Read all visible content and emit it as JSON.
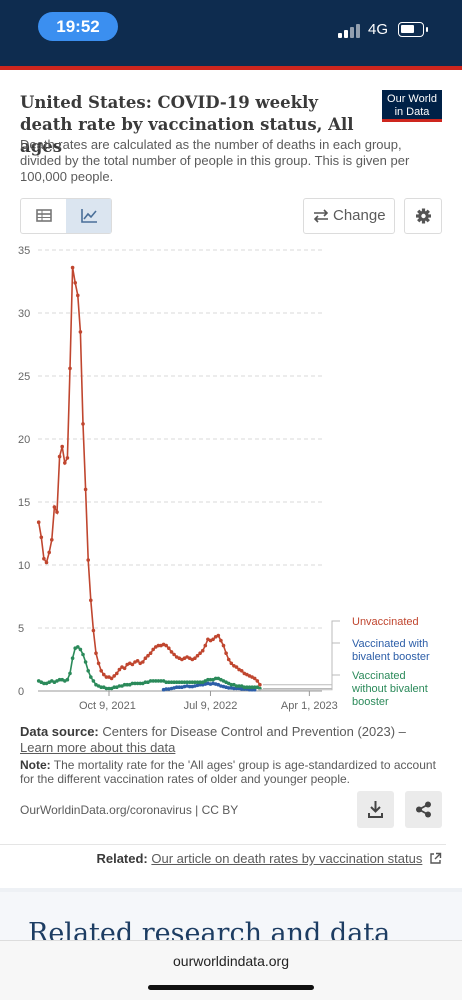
{
  "status_bar": {
    "time": "19:52",
    "network": "4G"
  },
  "header": {
    "title": "United States: COVID-19 weekly death rate by vaccination status, All ages",
    "subtitle": "Death rates are calculated as the number of deaths in each group, divided by the total number of people in this group. This is given per 100,000 people.",
    "logo_line1": "Our World",
    "logo_line2": "in Data"
  },
  "toolbar": {
    "change_label": "Change",
    "icons": [
      "table-icon",
      "line-chart-icon",
      "swap-arrows-icon",
      "gear-icon"
    ]
  },
  "colors": {
    "unvaccinated": "#c0462f",
    "bivalent": "#2c5ea8",
    "without_bivalent": "#2b8a5a",
    "brand": "#002147",
    "accent_red": "#ce261e"
  },
  "chart_data": {
    "type": "line",
    "ylim": [
      0,
      35
    ],
    "yticks": [
      0,
      5,
      10,
      15,
      20,
      25,
      30,
      35
    ],
    "xlim": [
      "2021-04-01",
      "2023-05-05"
    ],
    "xticks": [
      {
        "date": "2021-10-09",
        "label": "Oct 9, 2021"
      },
      {
        "date": "2022-07-09",
        "label": "Jul 9, 2022"
      },
      {
        "date": "2023-04-01",
        "label": "Apr 1, 2023"
      }
    ],
    "grid": "horizontal-dashed",
    "legend": "right-end-labels",
    "series": [
      {
        "name": "Unvaccinated",
        "color": "#c0462f",
        "points": [
          [
            "2021-04-03",
            13.4
          ],
          [
            "2021-04-10",
            12.2
          ],
          [
            "2021-04-17",
            10.5
          ],
          [
            "2021-04-24",
            10.2
          ],
          [
            "2021-05-01",
            11.0
          ],
          [
            "2021-05-08",
            12.0
          ],
          [
            "2021-05-15",
            14.6
          ],
          [
            "2021-05-22",
            14.2
          ],
          [
            "2021-05-29",
            18.6
          ],
          [
            "2021-06-05",
            19.4
          ],
          [
            "2021-06-12",
            18.1
          ],
          [
            "2021-06-19",
            18.5
          ],
          [
            "2021-06-26",
            25.6
          ],
          [
            "2021-07-03",
            33.6
          ],
          [
            "2021-07-10",
            32.4
          ],
          [
            "2021-07-17",
            31.4
          ],
          [
            "2021-07-24",
            28.5
          ],
          [
            "2021-07-31",
            21.2
          ],
          [
            "2021-08-07",
            16.0
          ],
          [
            "2021-08-14",
            10.4
          ],
          [
            "2021-08-21",
            7.2
          ],
          [
            "2021-08-28",
            4.8
          ],
          [
            "2021-09-04",
            3.0
          ],
          [
            "2021-09-11",
            2.2
          ],
          [
            "2021-09-18",
            1.6
          ],
          [
            "2021-09-25",
            1.3
          ],
          [
            "2021-10-02",
            1.1
          ],
          [
            "2021-10-09",
            1.1
          ],
          [
            "2021-10-16",
            1.0
          ],
          [
            "2021-10-23",
            1.2
          ],
          [
            "2021-10-30",
            1.4
          ],
          [
            "2021-11-06",
            1.7
          ],
          [
            "2021-11-13",
            1.9
          ],
          [
            "2021-11-20",
            1.8
          ],
          [
            "2021-11-27",
            2.1
          ],
          [
            "2021-12-04",
            2.2
          ],
          [
            "2021-12-11",
            2.1
          ],
          [
            "2021-12-18",
            2.3
          ],
          [
            "2021-12-25",
            2.4
          ],
          [
            "2022-01-01",
            2.2
          ],
          [
            "2022-01-08",
            2.3
          ],
          [
            "2022-01-15",
            2.6
          ],
          [
            "2022-01-22",
            2.8
          ],
          [
            "2022-01-29",
            3.0
          ],
          [
            "2022-02-05",
            3.3
          ],
          [
            "2022-02-12",
            3.5
          ],
          [
            "2022-02-19",
            3.6
          ],
          [
            "2022-02-26",
            3.6
          ],
          [
            "2022-03-05",
            3.7
          ],
          [
            "2022-03-12",
            3.6
          ],
          [
            "2022-03-19",
            3.4
          ],
          [
            "2022-03-26",
            3.1
          ],
          [
            "2022-04-02",
            2.9
          ],
          [
            "2022-04-09",
            2.7
          ],
          [
            "2022-04-16",
            2.6
          ],
          [
            "2022-04-23",
            2.5
          ],
          [
            "2022-04-30",
            2.6
          ],
          [
            "2022-05-07",
            2.7
          ],
          [
            "2022-05-14",
            2.6
          ],
          [
            "2022-05-21",
            2.5
          ],
          [
            "2022-05-28",
            2.6
          ],
          [
            "2022-06-04",
            2.8
          ],
          [
            "2022-06-11",
            3.0
          ],
          [
            "2022-06-18",
            3.2
          ],
          [
            "2022-06-25",
            3.6
          ],
          [
            "2022-07-02",
            4.1
          ],
          [
            "2022-07-09",
            4.0
          ],
          [
            "2022-07-16",
            4.1
          ],
          [
            "2022-07-23",
            4.3
          ],
          [
            "2022-07-30",
            4.4
          ],
          [
            "2022-08-06",
            4.0
          ],
          [
            "2022-08-13",
            3.6
          ],
          [
            "2022-08-20",
            3.0
          ],
          [
            "2022-08-27",
            2.5
          ],
          [
            "2022-09-03",
            2.2
          ],
          [
            "2022-09-10",
            2.0
          ],
          [
            "2022-09-17",
            1.9
          ],
          [
            "2022-09-24",
            1.7
          ],
          [
            "2022-10-01",
            1.6
          ],
          [
            "2022-10-08",
            1.4
          ],
          [
            "2022-10-15",
            1.3
          ],
          [
            "2022-10-22",
            1.2
          ],
          [
            "2022-10-29",
            1.1
          ],
          [
            "2022-11-05",
            1.0
          ],
          [
            "2022-11-12",
            0.8
          ],
          [
            "2022-11-19",
            0.5
          ]
        ]
      },
      {
        "name": "Vaccinated with bivalent booster",
        "color": "#2c5ea8",
        "points": [
          [
            "2022-03-05",
            0.1
          ],
          [
            "2022-03-12",
            0.15
          ],
          [
            "2022-03-19",
            0.15
          ],
          [
            "2022-03-26",
            0.2
          ],
          [
            "2022-04-02",
            0.25
          ],
          [
            "2022-04-09",
            0.3
          ],
          [
            "2022-04-16",
            0.3
          ],
          [
            "2022-04-23",
            0.3
          ],
          [
            "2022-04-30",
            0.35
          ],
          [
            "2022-05-07",
            0.4
          ],
          [
            "2022-05-14",
            0.35
          ],
          [
            "2022-05-21",
            0.35
          ],
          [
            "2022-05-28",
            0.4
          ],
          [
            "2022-06-04",
            0.45
          ],
          [
            "2022-06-11",
            0.5
          ],
          [
            "2022-06-18",
            0.5
          ],
          [
            "2022-06-25",
            0.55
          ],
          [
            "2022-07-02",
            0.6
          ],
          [
            "2022-07-09",
            0.55
          ],
          [
            "2022-07-16",
            0.6
          ],
          [
            "2022-07-23",
            0.55
          ],
          [
            "2022-07-30",
            0.5
          ],
          [
            "2022-08-06",
            0.4
          ],
          [
            "2022-08-13",
            0.35
          ],
          [
            "2022-08-20",
            0.3
          ],
          [
            "2022-08-27",
            0.25
          ],
          [
            "2022-09-03",
            0.25
          ],
          [
            "2022-09-10",
            0.2
          ],
          [
            "2022-09-17",
            0.2
          ],
          [
            "2022-09-24",
            0.2
          ],
          [
            "2022-10-01",
            0.15
          ],
          [
            "2022-10-08",
            0.15
          ],
          [
            "2022-10-15",
            0.15
          ],
          [
            "2022-10-22",
            0.1
          ],
          [
            "2022-10-29",
            0.1
          ],
          [
            "2022-11-05",
            0.1
          ]
        ]
      },
      {
        "name": "Vaccinated without bivalent booster",
        "color": "#2b8a5a",
        "points": [
          [
            "2021-04-03",
            0.8
          ],
          [
            "2021-04-10",
            0.7
          ],
          [
            "2021-04-17",
            0.6
          ],
          [
            "2021-04-24",
            0.6
          ],
          [
            "2021-05-01",
            0.7
          ],
          [
            "2021-05-08",
            0.8
          ],
          [
            "2021-05-15",
            0.7
          ],
          [
            "2021-05-22",
            0.8
          ],
          [
            "2021-05-29",
            0.9
          ],
          [
            "2021-06-05",
            0.9
          ],
          [
            "2021-06-12",
            0.8
          ],
          [
            "2021-06-19",
            0.9
          ],
          [
            "2021-06-26",
            1.4
          ],
          [
            "2021-07-03",
            2.6
          ],
          [
            "2021-07-10",
            3.4
          ],
          [
            "2021-07-17",
            3.5
          ],
          [
            "2021-07-24",
            3.3
          ],
          [
            "2021-07-31",
            2.9
          ],
          [
            "2021-08-07",
            2.3
          ],
          [
            "2021-08-14",
            1.6
          ],
          [
            "2021-08-21",
            1.1
          ],
          [
            "2021-08-28",
            0.8
          ],
          [
            "2021-09-04",
            0.5
          ],
          [
            "2021-09-11",
            0.4
          ],
          [
            "2021-09-18",
            0.3
          ],
          [
            "2021-09-25",
            0.3
          ],
          [
            "2021-10-02",
            0.2
          ],
          [
            "2021-10-09",
            0.2
          ],
          [
            "2021-10-16",
            0.2
          ],
          [
            "2021-10-23",
            0.3
          ],
          [
            "2021-10-30",
            0.3
          ],
          [
            "2021-11-06",
            0.4
          ],
          [
            "2021-11-13",
            0.4
          ],
          [
            "2021-11-20",
            0.5
          ],
          [
            "2021-11-27",
            0.5
          ],
          [
            "2021-12-04",
            0.5
          ],
          [
            "2021-12-11",
            0.6
          ],
          [
            "2021-12-18",
            0.6
          ],
          [
            "2021-12-25",
            0.6
          ],
          [
            "2022-01-01",
            0.6
          ],
          [
            "2022-01-08",
            0.6
          ],
          [
            "2022-01-15",
            0.7
          ],
          [
            "2022-01-22",
            0.7
          ],
          [
            "2022-01-29",
            0.8
          ],
          [
            "2022-02-05",
            0.8
          ],
          [
            "2022-02-12",
            0.8
          ],
          [
            "2022-02-19",
            0.8
          ],
          [
            "2022-02-26",
            0.8
          ],
          [
            "2022-03-05",
            0.8
          ],
          [
            "2022-03-12",
            0.7
          ],
          [
            "2022-03-19",
            0.7
          ],
          [
            "2022-03-26",
            0.7
          ],
          [
            "2022-04-02",
            0.7
          ],
          [
            "2022-04-09",
            0.7
          ],
          [
            "2022-04-16",
            0.7
          ],
          [
            "2022-04-23",
            0.7
          ],
          [
            "2022-04-30",
            0.7
          ],
          [
            "2022-05-07",
            0.7
          ],
          [
            "2022-05-14",
            0.7
          ],
          [
            "2022-05-21",
            0.7
          ],
          [
            "2022-05-28",
            0.7
          ],
          [
            "2022-06-04",
            0.7
          ],
          [
            "2022-06-11",
            0.7
          ],
          [
            "2022-06-18",
            0.7
          ],
          [
            "2022-06-25",
            0.8
          ],
          [
            "2022-07-02",
            0.9
          ],
          [
            "2022-07-09",
            0.9
          ],
          [
            "2022-07-16",
            0.9
          ],
          [
            "2022-07-23",
            1.0
          ],
          [
            "2022-07-30",
            1.0
          ],
          [
            "2022-08-06",
            0.9
          ],
          [
            "2022-08-13",
            0.8
          ],
          [
            "2022-08-20",
            0.7
          ],
          [
            "2022-08-27",
            0.6
          ],
          [
            "2022-09-03",
            0.5
          ],
          [
            "2022-09-10",
            0.5
          ],
          [
            "2022-09-17",
            0.4
          ],
          [
            "2022-09-24",
            0.4
          ],
          [
            "2022-10-01",
            0.4
          ],
          [
            "2022-10-08",
            0.3
          ],
          [
            "2022-10-15",
            0.3
          ],
          [
            "2022-10-22",
            0.3
          ],
          [
            "2022-10-29",
            0.3
          ],
          [
            "2022-11-05",
            0.3
          ],
          [
            "2022-11-12",
            0.3
          ],
          [
            "2022-11-19",
            0.2
          ]
        ]
      }
    ],
    "legend_labels": [
      {
        "series": "Unvaccinated",
        "lines": [
          "Unvaccinated"
        ]
      },
      {
        "series": "Vaccinated with bivalent booster",
        "lines": [
          "Vaccinated with",
          "bivalent booster"
        ]
      },
      {
        "series": "Vaccinated without bivalent booster",
        "lines": [
          "Vaccinated",
          "without bivalent",
          "booster"
        ]
      }
    ]
  },
  "footer": {
    "source_label": "Data source:",
    "source_text": "Centers for Disease Control and Prevention (2023) –",
    "source_link": "Learn more about this data",
    "note_label": "Note:",
    "note_text": "The mortality rate for the 'All ages' group is age-standardized to account for the different vaccination rates of older and younger people.",
    "attribution": "OurWorldinData.org/coronavirus | CC BY",
    "related_label": "Related:",
    "related_link": "Our article on death rates by vaccination status"
  },
  "lower_section": {
    "heading": "Related research and data"
  },
  "browser": {
    "url": "ourworldindata.org"
  }
}
